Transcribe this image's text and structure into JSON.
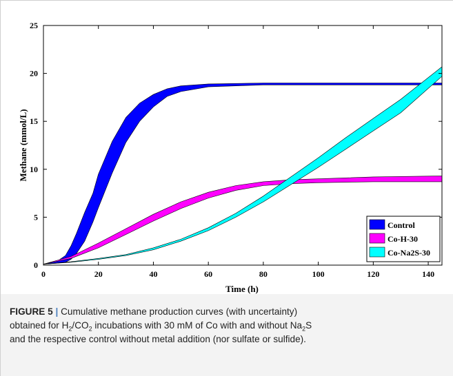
{
  "chart_data": {
    "type": "area",
    "xlabel": "Time (h)",
    "ylabel": "Methane (mmol/L)",
    "xlim": [
      0,
      145
    ],
    "ylim": [
      0,
      25
    ],
    "xticks": [
      0,
      20,
      40,
      60,
      80,
      100,
      120,
      140
    ],
    "yticks": [
      0,
      5,
      10,
      15,
      20,
      25
    ],
    "grid": false,
    "legend_position": "bottom-right",
    "series": [
      {
        "name": "Control",
        "color": "#0000ff",
        "x": [
          0,
          5,
          8,
          10,
          12,
          15,
          18,
          20,
          25,
          30,
          35,
          40,
          45,
          50,
          60,
          80,
          100,
          120,
          145
        ],
        "lower": [
          0.1,
          0.2,
          0.3,
          0.6,
          1.2,
          2.5,
          4.5,
          6.0,
          9.6,
          12.8,
          15.0,
          16.5,
          17.6,
          18.1,
          18.6,
          18.8,
          18.8,
          18.8,
          18.8
        ],
        "upper": [
          0.1,
          0.4,
          1.0,
          2.0,
          3.3,
          5.5,
          7.5,
          9.5,
          12.9,
          15.4,
          16.9,
          17.8,
          18.4,
          18.7,
          18.9,
          19.0,
          19.0,
          19.0,
          19.0
        ]
      },
      {
        "name": "Co-H-30",
        "color": "#ff00ff",
        "x": [
          0,
          10,
          20,
          30,
          40,
          50,
          60,
          70,
          80,
          90,
          100,
          120,
          145
        ],
        "lower": [
          0.1,
          0.7,
          1.8,
          3.2,
          4.6,
          5.9,
          7.0,
          7.8,
          8.3,
          8.5,
          8.6,
          8.7,
          8.7
        ],
        "upper": [
          0.1,
          0.9,
          2.3,
          3.8,
          5.3,
          6.6,
          7.6,
          8.3,
          8.7,
          8.9,
          9.0,
          9.2,
          9.3
        ]
      },
      {
        "name": "Co-Na2S-30",
        "color": "#00ffff",
        "x": [
          0,
          10,
          20,
          30,
          40,
          50,
          60,
          70,
          80,
          90,
          100,
          110,
          120,
          130,
          145
        ],
        "lower": [
          0.1,
          0.3,
          0.6,
          1.0,
          1.6,
          2.5,
          3.6,
          5.0,
          6.6,
          8.4,
          10.2,
          12.1,
          14.0,
          15.9,
          19.7
        ],
        "upper": [
          0.1,
          0.35,
          0.7,
          1.1,
          1.8,
          2.7,
          3.9,
          5.4,
          7.2,
          9.2,
          11.2,
          13.3,
          15.3,
          17.3,
          20.7
        ]
      }
    ]
  },
  "caption": {
    "label": "FIGURE 5",
    "separator": "|",
    "line1": "Cumulative methane production curves (with uncertainty)",
    "line2_a": "obtained for H",
    "sub_h": "2",
    "line2_b": "/CO",
    "sub_co": "2",
    "line2_c": " incubations with 30 mM of Co with and without Na",
    "sub_na": "2",
    "line2_d": "S",
    "line3": "and the respective control without metal addition (nor sulfate or sulfide)."
  }
}
